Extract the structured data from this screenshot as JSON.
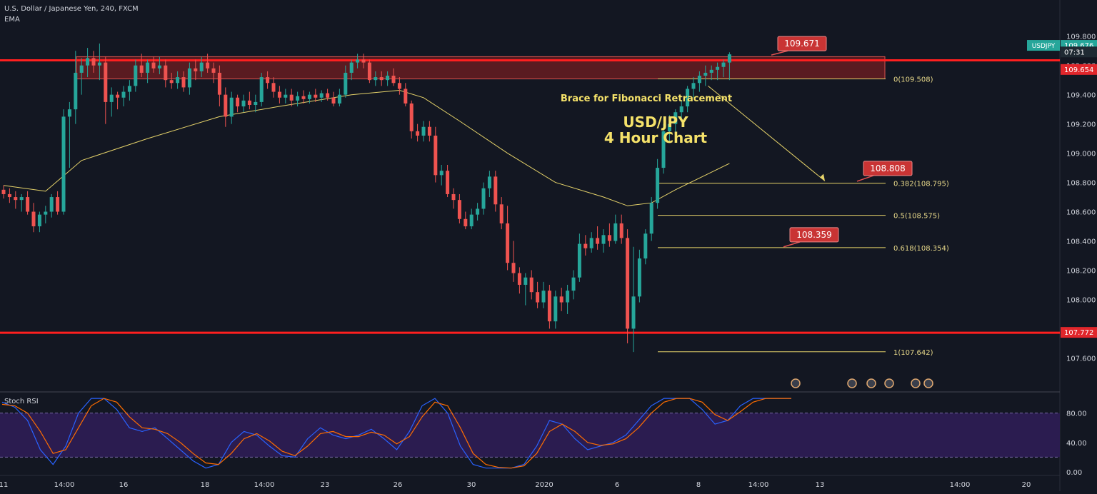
{
  "header": {
    "symbol_line": "U.S. Dollar / Japanese Yen, 240, FXCM",
    "indicator": "EMA"
  },
  "colors": {
    "background": "#131722",
    "up": "#26a69a",
    "down": "#ef5350",
    "ema": "#e6d36a",
    "fib": "#e6d36a",
    "resistance": "#ff1f1f",
    "stoch_k": "#2962ff",
    "stoch_d": "#ff6d00",
    "stoch_band": "#2b1c50"
  },
  "chart_data": {
    "type": "candlestick",
    "annotation_title": "Brace for Fibonacci Retracement",
    "headline": [
      "USD/JPY",
      "4 Hour Chart"
    ],
    "y_axis": {
      "range": [
        107.47,
        109.95
      ],
      "ticks": [
        "109.800",
        "109.600",
        "109.400",
        "109.200",
        "109.000",
        "108.800",
        "108.600",
        "108.400",
        "108.200",
        "108.000",
        "107.600"
      ]
    },
    "x_axis": {
      "ticks": [
        "11",
        "14:00",
        "16",
        "18",
        "14:00",
        "23",
        "26",
        "30",
        "2020",
        "6",
        "8",
        "14:00",
        "13",
        "14:00",
        "20"
      ]
    },
    "price_tags": [
      {
        "label": "USDJPY",
        "value": "109.676"
      },
      {
        "label": "",
        "value": "07:31"
      },
      {
        "label": "",
        "value": "109.654"
      },
      {
        "label": "",
        "value": "107.772"
      }
    ],
    "resistance_zone": {
      "top": 109.66,
      "bottom": 109.508
    },
    "horizontal_levels": [
      109.635,
      107.772
    ],
    "fibonacci": [
      {
        "label": "0(109.508)",
        "value": 109.508
      },
      {
        "label": "0.382(108.795)",
        "value": 108.795
      },
      {
        "label": "0.5(108.575)",
        "value": 108.575
      },
      {
        "label": "0.618(108.354)",
        "value": 108.354
      },
      {
        "label": "1(107.642)",
        "value": 107.642
      }
    ],
    "callouts": [
      "109.671",
      "108.808",
      "108.359"
    ],
    "candles": [
      [
        108.75,
        108.78,
        108.69,
        108.72
      ],
      [
        108.72,
        108.76,
        108.66,
        108.7
      ],
      [
        108.7,
        108.74,
        108.62,
        108.68
      ],
      [
        108.68,
        108.72,
        108.6,
        108.7
      ],
      [
        108.7,
        108.74,
        108.58,
        108.6
      ],
      [
        108.6,
        108.66,
        108.46,
        108.5
      ],
      [
        108.5,
        108.6,
        108.46,
        108.58
      ],
      [
        108.58,
        108.64,
        108.52,
        108.6
      ],
      [
        108.6,
        108.72,
        108.56,
        108.7
      ],
      [
        108.7,
        108.74,
        108.58,
        108.6
      ],
      [
        108.6,
        109.3,
        108.58,
        109.25
      ],
      [
        109.25,
        109.35,
        108.9,
        109.3
      ],
      [
        109.3,
        109.7,
        109.2,
        109.55
      ],
      [
        109.55,
        109.65,
        109.4,
        109.6
      ],
      [
        109.6,
        109.72,
        109.52,
        109.65
      ],
      [
        109.65,
        109.7,
        109.55,
        109.6
      ],
      [
        109.6,
        109.75,
        109.5,
        109.62
      ],
      [
        109.62,
        109.66,
        109.2,
        109.35
      ],
      [
        109.35,
        109.45,
        109.25,
        109.4
      ],
      [
        109.4,
        109.42,
        109.3,
        109.38
      ],
      [
        109.38,
        109.46,
        109.32,
        109.42
      ],
      [
        109.42,
        109.5,
        109.36,
        109.46
      ],
      [
        109.46,
        109.64,
        109.42,
        109.6
      ],
      [
        109.6,
        109.68,
        109.52,
        109.55
      ],
      [
        109.55,
        109.64,
        109.48,
        109.62
      ],
      [
        109.62,
        109.66,
        109.55,
        109.58
      ],
      [
        109.58,
        109.66,
        109.54,
        109.6
      ],
      [
        109.6,
        109.64,
        109.45,
        109.5
      ],
      [
        109.5,
        109.55,
        109.44,
        109.48
      ],
      [
        109.48,
        109.56,
        109.44,
        109.52
      ],
      [
        109.52,
        109.56,
        109.42,
        109.45
      ],
      [
        109.45,
        109.62,
        109.4,
        109.58
      ],
      [
        109.58,
        109.64,
        109.5,
        109.56
      ],
      [
        109.56,
        109.66,
        109.52,
        109.62
      ],
      [
        109.62,
        109.68,
        109.55,
        109.58
      ],
      [
        109.58,
        109.62,
        109.48,
        109.55
      ],
      [
        109.55,
        109.6,
        109.32,
        109.4
      ],
      [
        109.4,
        109.45,
        109.18,
        109.25
      ],
      [
        109.25,
        109.42,
        109.2,
        109.38
      ],
      [
        109.38,
        109.4,
        109.28,
        109.32
      ],
      [
        109.32,
        109.4,
        109.28,
        109.36
      ],
      [
        109.36,
        109.42,
        109.3,
        109.33
      ],
      [
        109.33,
        109.4,
        109.28,
        109.35
      ],
      [
        109.35,
        109.55,
        109.32,
        109.52
      ],
      [
        109.52,
        109.56,
        109.44,
        109.48
      ],
      [
        109.48,
        109.52,
        109.38,
        109.42
      ],
      [
        109.42,
        109.46,
        109.34,
        109.38
      ],
      [
        109.38,
        109.44,
        109.34,
        109.4
      ],
      [
        109.4,
        109.44,
        109.32,
        109.36
      ],
      [
        109.36,
        109.42,
        109.32,
        109.39
      ],
      [
        109.39,
        109.43,
        109.34,
        109.37
      ],
      [
        109.37,
        109.42,
        109.34,
        109.4
      ],
      [
        109.4,
        109.44,
        109.35,
        109.38
      ],
      [
        109.38,
        109.43,
        109.35,
        109.41
      ],
      [
        109.41,
        109.44,
        109.36,
        109.38
      ],
      [
        109.38,
        109.42,
        109.32,
        109.34
      ],
      [
        109.34,
        109.44,
        109.32,
        109.4
      ],
      [
        109.4,
        109.6,
        109.38,
        109.55
      ],
      [
        109.55,
        109.64,
        109.5,
        109.62
      ],
      [
        109.62,
        109.68,
        109.58,
        109.64
      ],
      [
        109.64,
        109.68,
        109.58,
        109.62
      ],
      [
        109.62,
        109.64,
        109.48,
        109.5
      ],
      [
        109.5,
        109.56,
        109.46,
        109.52
      ],
      [
        109.52,
        109.56,
        109.46,
        109.5
      ],
      [
        109.5,
        109.56,
        109.46,
        109.53
      ],
      [
        109.53,
        109.58,
        109.46,
        109.48
      ],
      [
        109.48,
        109.52,
        109.4,
        109.44
      ],
      [
        109.44,
        109.48,
        109.32,
        109.34
      ],
      [
        109.34,
        109.36,
        109.1,
        109.15
      ],
      [
        109.15,
        109.2,
        109.08,
        109.12
      ],
      [
        109.12,
        109.22,
        109.08,
        109.18
      ],
      [
        109.18,
        109.22,
        109.08,
        109.12
      ],
      [
        109.12,
        109.18,
        108.8,
        108.85
      ],
      [
        108.85,
        108.92,
        108.78,
        108.88
      ],
      [
        108.88,
        108.92,
        108.7,
        108.72
      ],
      [
        108.72,
        108.76,
        108.62,
        108.68
      ],
      [
        108.68,
        108.72,
        108.52,
        108.55
      ],
      [
        108.55,
        108.6,
        108.48,
        108.5
      ],
      [
        108.5,
        108.62,
        108.48,
        108.58
      ],
      [
        108.58,
        108.66,
        108.54,
        108.62
      ],
      [
        108.62,
        108.8,
        108.58,
        108.76
      ],
      [
        108.76,
        108.88,
        108.7,
        108.84
      ],
      [
        108.84,
        108.88,
        108.6,
        108.65
      ],
      [
        108.65,
        108.7,
        108.48,
        108.52
      ],
      [
        108.52,
        108.64,
        108.2,
        108.25
      ],
      [
        108.25,
        108.4,
        108.12,
        108.18
      ],
      [
        108.18,
        108.22,
        108.04,
        108.1
      ],
      [
        108.1,
        108.18,
        107.96,
        108.15
      ],
      [
        108.15,
        108.2,
        108.0,
        108.05
      ],
      [
        108.05,
        108.12,
        107.94,
        107.98
      ],
      [
        107.98,
        108.12,
        107.94,
        108.06
      ],
      [
        108.06,
        108.1,
        107.8,
        107.85
      ],
      [
        107.85,
        108.06,
        107.8,
        108.02
      ],
      [
        108.02,
        108.08,
        107.92,
        107.98
      ],
      [
        107.98,
        108.1,
        107.9,
        108.06
      ],
      [
        108.06,
        108.2,
        108.0,
        108.15
      ],
      [
        108.15,
        108.45,
        108.12,
        108.38
      ],
      [
        108.38,
        108.44,
        108.3,
        108.35
      ],
      [
        108.35,
        108.46,
        108.32,
        108.42
      ],
      [
        108.42,
        108.5,
        108.34,
        108.38
      ],
      [
        108.38,
        108.48,
        108.32,
        108.44
      ],
      [
        108.44,
        108.52,
        108.36,
        108.4
      ],
      [
        108.4,
        108.58,
        108.38,
        108.52
      ],
      [
        108.52,
        108.58,
        108.38,
        108.42
      ],
      [
        108.42,
        108.48,
        107.7,
        107.8
      ],
      [
        107.8,
        108.36,
        107.64,
        108.02
      ],
      [
        108.02,
        108.34,
        107.98,
        108.28
      ],
      [
        108.28,
        108.48,
        108.24,
        108.45
      ],
      [
        108.45,
        108.7,
        108.4,
        108.66
      ],
      [
        108.66,
        108.96,
        108.62,
        108.9
      ],
      [
        108.9,
        109.2,
        108.86,
        109.15
      ],
      [
        109.15,
        109.26,
        109.08,
        109.2
      ],
      [
        109.2,
        109.3,
        109.14,
        109.28
      ],
      [
        109.28,
        109.36,
        109.22,
        109.32
      ],
      [
        109.32,
        109.46,
        109.28,
        109.44
      ],
      [
        109.44,
        109.52,
        109.38,
        109.48
      ],
      [
        109.48,
        109.56,
        109.42,
        109.53
      ],
      [
        109.53,
        109.6,
        109.46,
        109.55
      ],
      [
        109.55,
        109.6,
        109.5,
        109.57
      ],
      [
        109.57,
        109.62,
        109.5,
        109.59
      ],
      [
        109.59,
        109.64,
        109.52,
        109.62
      ],
      [
        109.62,
        109.69,
        109.5,
        109.676
      ]
    ],
    "ema": [
      [
        0,
        108.78
      ],
      [
        7,
        108.74
      ],
      [
        13,
        108.95
      ],
      [
        24,
        109.1
      ],
      [
        36,
        109.25
      ],
      [
        46,
        109.32
      ],
      [
        58,
        109.4
      ],
      [
        66,
        109.43
      ],
      [
        70,
        109.38
      ],
      [
        76,
        109.22
      ],
      [
        84,
        109.0
      ],
      [
        92,
        108.8
      ],
      [
        100,
        108.7
      ],
      [
        104,
        108.64
      ],
      [
        108,
        108.66
      ],
      [
        112,
        108.75
      ],
      [
        117,
        108.85
      ],
      [
        121,
        108.93
      ]
    ],
    "stoch_rsi": {
      "range": [
        -5,
        105
      ],
      "band": [
        20,
        80
      ],
      "ticks": [
        "80.00",
        "40.00",
        "0.00"
      ],
      "title": "Stoch RSI",
      "k": [
        95,
        88,
        70,
        30,
        10,
        35,
        80,
        100,
        100,
        85,
        60,
        55,
        60,
        45,
        30,
        15,
        5,
        10,
        40,
        55,
        50,
        35,
        22,
        20,
        45,
        60,
        50,
        45,
        50,
        58,
        45,
        30,
        55,
        90,
        100,
        80,
        35,
        10,
        5,
        5,
        5,
        10,
        35,
        70,
        65,
        45,
        30,
        35,
        40,
        50,
        70,
        90,
        100,
        100,
        100,
        85,
        65,
        70,
        90,
        100,
        100,
        100,
        100
      ],
      "d": [
        92,
        90,
        80,
        55,
        25,
        30,
        60,
        90,
        100,
        95,
        75,
        60,
        58,
        52,
        40,
        25,
        12,
        10,
        25,
        45,
        52,
        42,
        28,
        22,
        35,
        52,
        55,
        48,
        48,
        54,
        50,
        38,
        48,
        75,
        95,
        90,
        60,
        25,
        10,
        6,
        5,
        8,
        25,
        55,
        65,
        55,
        40,
        36,
        38,
        45,
        60,
        80,
        95,
        100,
        100,
        95,
        78,
        70,
        82,
        95,
        100,
        100,
        100
      ]
    }
  }
}
